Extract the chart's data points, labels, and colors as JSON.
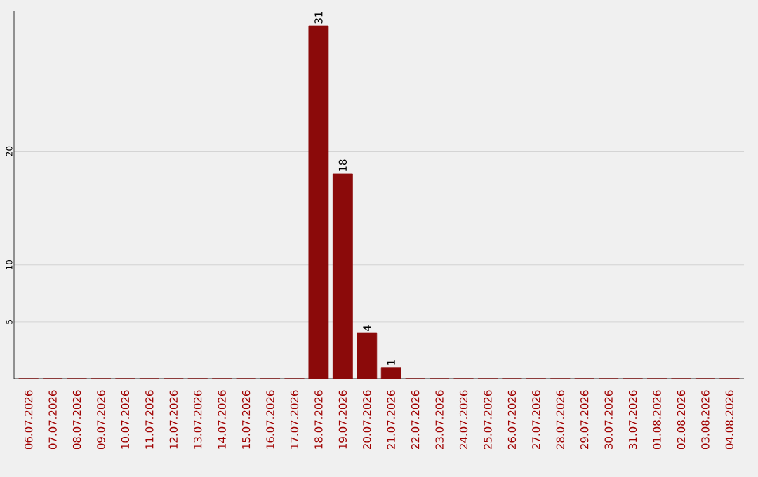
{
  "chart_data": {
    "type": "bar",
    "categories": [
      "06.07.2026",
      "07.07.2026",
      "08.07.2026",
      "09.07.2026",
      "10.07.2026",
      "11.07.2026",
      "12.07.2026",
      "13.07.2026",
      "14.07.2026",
      "15.07.2026",
      "16.07.2026",
      "17.07.2026",
      "18.07.2026",
      "19.07.2026",
      "20.07.2026",
      "21.07.2026",
      "22.07.2026",
      "23.07.2026",
      "24.07.2026",
      "25.07.2026",
      "26.07.2026",
      "27.07.2026",
      "28.07.2026",
      "29.07.2026",
      "30.07.2026",
      "31.07.2026",
      "01.08.2026",
      "02.08.2026",
      "03.08.2026",
      "04.08.2026"
    ],
    "values": [
      0,
      0,
      0,
      0,
      0,
      0,
      0,
      0,
      0,
      0,
      0,
      0,
      31,
      18,
      4,
      1,
      0,
      0,
      0,
      0,
      0,
      0,
      0,
      0,
      0,
      0,
      0,
      0,
      0,
      0
    ],
    "value_labels": [
      null,
      null,
      null,
      null,
      null,
      null,
      null,
      null,
      null,
      null,
      null,
      null,
      "31",
      "18",
      "4",
      "1",
      null,
      null,
      null,
      null,
      null,
      null,
      null,
      null,
      null,
      null,
      null,
      null,
      null,
      null
    ],
    "color": "#8b0a0a",
    "ylim": [
      0,
      32.3
    ],
    "yticks": [
      5,
      10,
      20
    ],
    "grid": "y"
  }
}
